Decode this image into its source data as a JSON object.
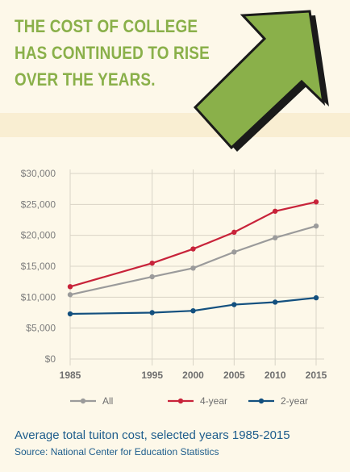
{
  "headline": {
    "line1": "THE COST OF COLLEGE",
    "line2": "HAS CONTINUED TO RISE",
    "line3": "OVER THE YEARS."
  },
  "colors": {
    "headline": "#8ab04a",
    "arrow_fill": "#8ab04a",
    "arrow_stroke": "#1a1a1a",
    "background": "#fdf8e9",
    "stripe": "#f9eed2",
    "caption": "#1e5d8c"
  },
  "arrow_icon": "up-right-arrow-icon",
  "chart_data": {
    "type": "line",
    "x": [
      1985,
      1995,
      2000,
      2005,
      2010,
      2015
    ],
    "x_tick_labels": [
      "1985",
      "1995",
      "2000",
      "2005",
      "2010",
      "2015"
    ],
    "y_tick_values": [
      0,
      5000,
      10000,
      15000,
      20000,
      25000,
      30000
    ],
    "y_tick_labels": [
      "$0",
      "$5,000",
      "$10,000",
      "$15,000",
      "$20,000",
      "$25,000",
      "$30,000"
    ],
    "xlim": [
      1985,
      2015
    ],
    "ylim": [
      0,
      30000
    ],
    "grid": true,
    "legend_position": "bottom",
    "series": [
      {
        "name": "All",
        "color": "#9b9b9b",
        "values": [
          10400,
          13300,
          14700,
          17300,
          19600,
          21500
        ]
      },
      {
        "name": "4-year",
        "color": "#c8233a",
        "values": [
          11700,
          15500,
          17800,
          20500,
          23900,
          25400
        ]
      },
      {
        "name": "2-year",
        "color": "#13507f",
        "values": [
          7300,
          7500,
          7800,
          8800,
          9200,
          9900
        ]
      }
    ],
    "caption": "Average total tuiton cost, selected years 1985-2015",
    "source": "Source: National Center for Education Statistics"
  }
}
